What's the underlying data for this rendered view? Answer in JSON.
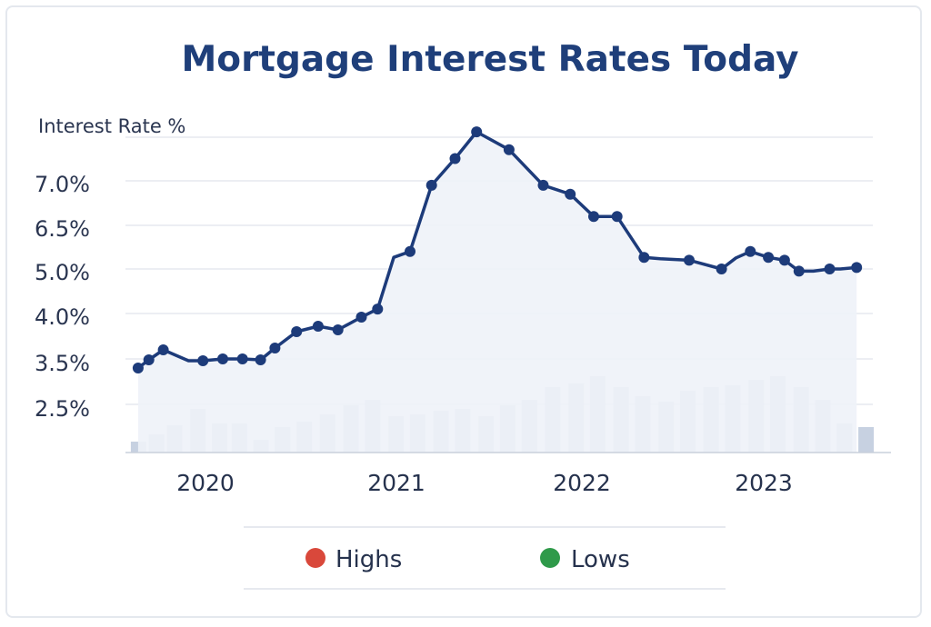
{
  "chart_data": {
    "type": "line",
    "title": "Mortgage Interest Rates Today",
    "ylabel": "Interest Rate %",
    "y_tick_labels": [
      "7.0%",
      "6.5%",
      "5.0%",
      "4.0%",
      "3.5%",
      "2.5%"
    ],
    "x_tick_labels": [
      "2020",
      "2021",
      "2022",
      "2023"
    ],
    "x_range": [
      2019.55,
      2023.7
    ],
    "legend": {
      "placement": "bottom",
      "items": [
        {
          "label": "Highs",
          "color": "#d9483b"
        },
        {
          "label": "Lows",
          "color": "#2f9a4a"
        }
      ]
    },
    "grid": true,
    "line_color": "#1d3b7a",
    "area_color": "#eef2f8",
    "bar_color": "#c7d1e1",
    "series": [
      {
        "x": [
          2019.62,
          2019.68,
          2019.76,
          2019.9,
          2019.98,
          2020.09,
          2020.2,
          2020.3,
          2020.38,
          2020.5,
          2020.62,
          2020.73,
          2020.86,
          2020.95,
          2021.04,
          2021.13,
          2021.25,
          2021.38,
          2021.5,
          2021.68,
          2021.87,
          2022.02,
          2022.15,
          2022.28,
          2022.43,
          2022.52,
          2022.68,
          2022.86,
          2022.94,
          2023.02,
          2023.12,
          2023.21,
          2023.29,
          2023.37,
          2023.46,
          2023.52,
          2023.61
        ],
        "y": [
          3.3,
          3.48,
          3.6,
          3.46,
          3.46,
          3.5,
          3.5,
          3.48,
          3.62,
          3.8,
          3.86,
          3.82,
          3.96,
          4.1,
          5.4,
          5.6,
          6.95,
          7.25,
          7.55,
          7.35,
          6.95,
          6.85,
          6.6,
          6.6,
          5.4,
          5.35,
          5.3,
          5.0,
          5.38,
          5.6,
          5.4,
          5.3,
          4.95,
          4.95,
          5.0,
          5.0,
          5.05
        ],
        "markers": [
          true,
          true,
          true,
          false,
          true,
          true,
          true,
          true,
          true,
          true,
          true,
          true,
          true,
          true,
          false,
          true,
          true,
          true,
          true,
          true,
          true,
          true,
          true,
          true,
          true,
          false,
          true,
          true,
          false,
          true,
          true,
          true,
          true,
          false,
          true,
          false,
          true
        ]
      }
    ],
    "bars": {
      "x": [
        2019.62,
        2019.72,
        2019.82,
        2019.95,
        2020.07,
        2020.18,
        2020.3,
        2020.42,
        2020.54,
        2020.67,
        2020.8,
        2020.92,
        2021.05,
        2021.17,
        2021.3,
        2021.42,
        2021.55,
        2021.67,
        2021.79,
        2021.92,
        2022.05,
        2022.17,
        2022.3,
        2022.42,
        2022.55,
        2022.67,
        2022.8,
        2022.92,
        2023.05,
        2023.17,
        2023.3,
        2023.42,
        2023.54,
        2023.66
      ],
      "values": [
        0.6,
        1.0,
        1.5,
        2.4,
        1.6,
        1.6,
        0.7,
        1.4,
        1.7,
        2.1,
        2.6,
        2.9,
        2.0,
        2.1,
        2.3,
        2.4,
        2.0,
        2.6,
        2.9,
        3.6,
        3.8,
        4.2,
        3.6,
        3.1,
        2.8,
        3.4,
        3.6,
        3.7,
        4.0,
        4.2,
        3.6,
        2.9,
        1.6,
        1.4
      ],
      "ylim": [
        0,
        5
      ]
    }
  }
}
